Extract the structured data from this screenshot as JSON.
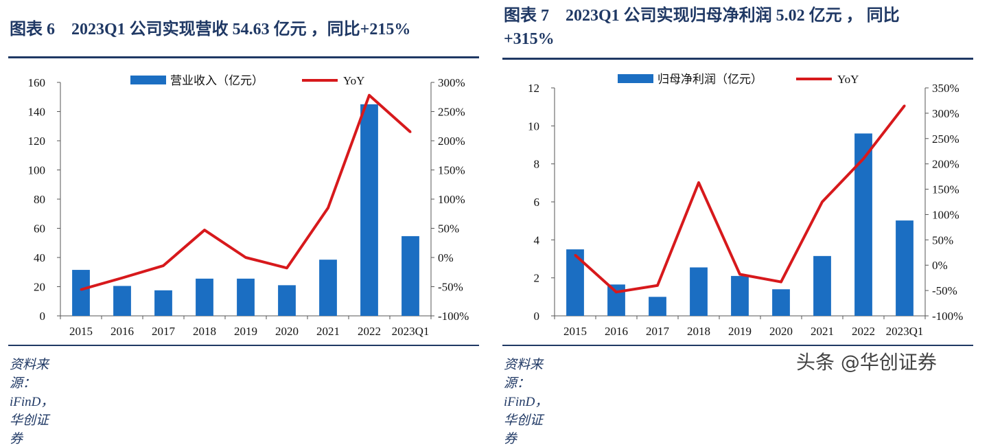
{
  "colors": {
    "bar": "#1b6ec2",
    "line": "#d7191c",
    "title": "#1f3864",
    "axis": "#555555"
  },
  "charts": [
    {
      "title": "图表 6　2023Q1 公司实现营收 54.63 亿元 ，同比+215%",
      "title_lines": [
        "图表 6　2023Q1 公司实现营收 54.63 亿元 ，同比+215%"
      ],
      "source": "资料来源：iFinD，华创证券",
      "legend": {
        "bar": "营业收入（亿元）",
        "line": "YoY"
      }
    },
    {
      "title": "图表 7　2023Q1 公司实现归母净利润 5.02 亿元 ，同比+315%",
      "title_lines": [
        "图表 7　2023Q1 公司实现归母净利润 5.02 亿元 ， 同比",
        "+315%"
      ],
      "source": "资料来源：iFinD，华创证券",
      "legend": {
        "bar": "归母净利润（亿元）",
        "line": "YoY"
      }
    }
  ],
  "chart_data": [
    {
      "type": "bar",
      "title": "2023Q1 公司实现营收 54.63 亿元，同比+215%",
      "categories": [
        "2015",
        "2016",
        "2017",
        "2018",
        "2019",
        "2020",
        "2021",
        "2022",
        "2023Q1"
      ],
      "series": [
        {
          "name": "营业收入（亿元）",
          "axis": "left",
          "kind": "bar",
          "values": [
            31.5,
            20.5,
            17.5,
            25.5,
            25.5,
            21.0,
            38.5,
            145.0,
            54.63
          ]
        },
        {
          "name": "YoY",
          "axis": "right",
          "kind": "line",
          "values": [
            -55,
            -35,
            -14,
            47,
            0,
            -18,
            85,
            278,
            215
          ]
        }
      ],
      "ylim": [
        0,
        160
      ],
      "yticks": [
        "0",
        "20",
        "40",
        "60",
        "80",
        "100",
        "120",
        "140",
        "160"
      ],
      "y2lim": [
        -100,
        300
      ],
      "y2ticks": [
        "-100%",
        "-50%",
        "0%",
        "50%",
        "100%",
        "150%",
        "200%",
        "250%",
        "300%"
      ]
    },
    {
      "type": "bar",
      "title": "2023Q1 公司实现归母净利润 5.02 亿元，同比+315%",
      "categories": [
        "2015",
        "2016",
        "2017",
        "2018",
        "2019",
        "2020",
        "2021",
        "2022",
        "2023Q1"
      ],
      "series": [
        {
          "name": "归母净利润（亿元）",
          "axis": "left",
          "kind": "bar",
          "values": [
            3.5,
            1.65,
            1.0,
            2.55,
            2.1,
            1.4,
            3.15,
            9.6,
            5.02
          ]
        },
        {
          "name": "YoY",
          "axis": "right",
          "kind": "line",
          "values": [
            20,
            -53,
            -40,
            163,
            -18,
            -33,
            125,
            210,
            315
          ]
        }
      ],
      "ylim": [
        0,
        12
      ],
      "yticks": [
        "0",
        "2",
        "4",
        "6",
        "8",
        "10",
        "12"
      ],
      "y2lim": [
        -100,
        350
      ],
      "y2ticks": [
        "-100%",
        "-50%",
        "0%",
        "50%",
        "100%",
        "150%",
        "200%",
        "250%",
        "300%",
        "350%"
      ]
    }
  ],
  "watermark": "头条 @华创证券"
}
